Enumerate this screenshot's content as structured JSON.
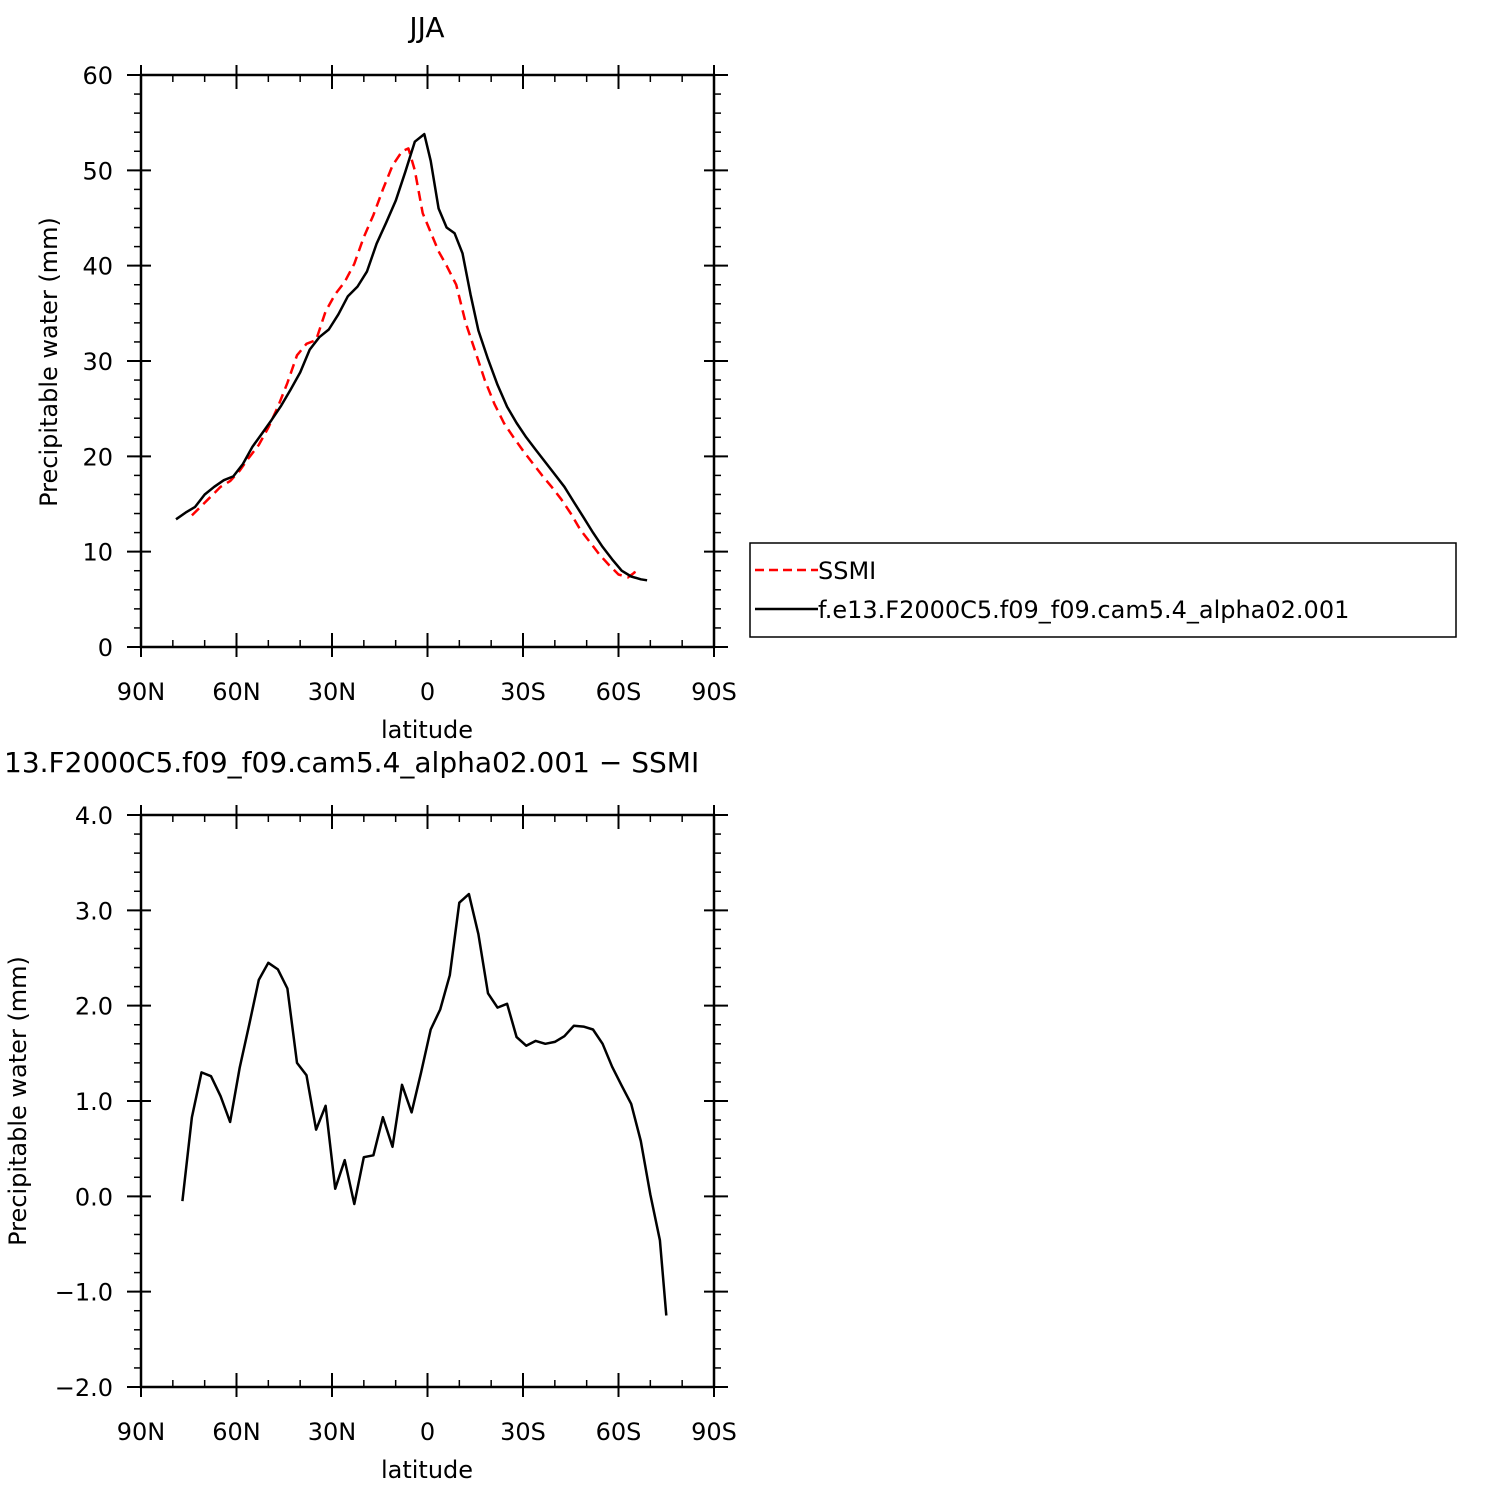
{
  "chart_data": [
    {
      "type": "line",
      "title": "JJA",
      "xlabel": "latitude",
      "ylabel": "Precipitable water (mm)",
      "xlim": [
        90,
        -90
      ],
      "ylim": [
        0,
        60
      ],
      "x_ticks": [
        90,
        60,
        30,
        0,
        -30,
        -60,
        -90
      ],
      "x_tick_labels": [
        "90N",
        "60N",
        "30N",
        "0",
        "30S",
        "60S",
        "90S"
      ],
      "y_ticks": [
        0,
        10,
        20,
        30,
        40,
        50,
        60
      ],
      "y_tick_labels": [
        "0",
        "10",
        "20",
        "30",
        "40",
        "50",
        "60"
      ],
      "legend": "right",
      "series": [
        {
          "name": "SSMI",
          "color": "#ff0000",
          "style": "dashed",
          "points": [
            [
              74,
              13.8
            ],
            [
              71,
              14.8
            ],
            [
              68,
              15.8
            ],
            [
              65,
              16.8
            ],
            [
              62,
              17.4
            ],
            [
              59,
              18.5
            ],
            [
              56,
              19.9
            ],
            [
              53,
              21.2
            ],
            [
              50,
              23
            ],
            [
              47,
              25.2
            ],
            [
              44,
              27.7
            ],
            [
              41,
              30.6
            ],
            [
              38,
              31.8
            ],
            [
              35,
              32.2
            ],
            [
              32,
              35.2
            ],
            [
              29,
              37
            ],
            [
              26,
              38.3
            ],
            [
              23,
              40.2
            ],
            [
              20,
              43
            ],
            [
              17,
              45.3
            ],
            [
              14,
              48
            ],
            [
              11,
              50.5
            ],
            [
              8,
              52
            ],
            [
              6,
              52.3
            ],
            [
              4,
              50
            ],
            [
              1.5,
              45.5
            ],
            [
              -1,
              43.5
            ],
            [
              -3.5,
              41.5
            ],
            [
              -6,
              40
            ],
            [
              -9,
              38
            ],
            [
              -12,
              34
            ],
            [
              -15,
              31
            ],
            [
              -18,
              28
            ],
            [
              -21,
              25.5
            ],
            [
              -24,
              23.5
            ],
            [
              -27,
              22
            ],
            [
              -30,
              20.6
            ],
            [
              -33,
              19.3
            ],
            [
              -36,
              18
            ],
            [
              -39,
              16.8
            ],
            [
              -42,
              15.5
            ],
            [
              -45,
              14
            ],
            [
              -48,
              12.3
            ],
            [
              -51,
              11
            ],
            [
              -54,
              9.7
            ],
            [
              -57,
              8.6
            ],
            [
              -60,
              7.6
            ],
            [
              -63,
              7.3
            ],
            [
              -65,
              7.8
            ],
            [
              -66,
              8.4
            ]
          ]
        },
        {
          "name": "f.e13.F2000C5.f09_f09.cam5.4_alpha02.001",
          "color": "#000000",
          "style": "solid",
          "points": [
            [
              79,
              13.4
            ],
            [
              76,
              14.1
            ],
            [
              73,
              14.7
            ],
            [
              70,
              16
            ],
            [
              67,
              16.8
            ],
            [
              64,
              17.5
            ],
            [
              61,
              17.9
            ],
            [
              58,
              19.2
            ],
            [
              55,
              21
            ],
            [
              52,
              22.4
            ],
            [
              49,
              23.8
            ],
            [
              46,
              25.3
            ],
            [
              43,
              27
            ],
            [
              40,
              28.8
            ],
            [
              37,
              31.2
            ],
            [
              34,
              32.5
            ],
            [
              31,
              33.3
            ],
            [
              28,
              34.9
            ],
            [
              25,
              36.8
            ],
            [
              22,
              37.8
            ],
            [
              19,
              39.4
            ],
            [
              16,
              42.3
            ],
            [
              13,
              44.5
            ],
            [
              10,
              46.8
            ],
            [
              7,
              49.8
            ],
            [
              4,
              53
            ],
            [
              1,
              53.8
            ],
            [
              -1,
              51
            ],
            [
              -3.5,
              46
            ],
            [
              -6,
              44
            ],
            [
              -8.5,
              43.4
            ],
            [
              -11,
              41.3
            ],
            [
              -13.5,
              37
            ],
            [
              -16,
              33.2
            ],
            [
              -19,
              30.2
            ],
            [
              -22,
              27.5
            ],
            [
              -25,
              25.2
            ],
            [
              -28,
              23.5
            ],
            [
              -31,
              22
            ],
            [
              -34,
              20.7
            ],
            [
              -37,
              19.4
            ],
            [
              -40,
              18.1
            ],
            [
              -43,
              16.8
            ],
            [
              -46,
              15.2
            ],
            [
              -49,
              13.6
            ],
            [
              -52,
              12
            ],
            [
              -55,
              10.5
            ],
            [
              -58,
              9.2
            ],
            [
              -61,
              8
            ],
            [
              -64,
              7.4
            ],
            [
              -67,
              7.1
            ],
            [
              -69,
              7
            ]
          ]
        }
      ]
    },
    {
      "type": "line",
      "title": "13.F2000C5.f09_f09.cam5.4_alpha02.001 − SSMI",
      "xlabel": "latitude",
      "ylabel": "Precipitable water (mm)",
      "xlim": [
        90,
        -90
      ],
      "ylim": [
        -2,
        4
      ],
      "x_ticks": [
        90,
        60,
        30,
        0,
        -30,
        -60,
        -90
      ],
      "x_tick_labels": [
        "90N",
        "60N",
        "30N",
        "0",
        "30S",
        "60S",
        "90S"
      ],
      "y_ticks": [
        -2,
        -1,
        0,
        1,
        2,
        3,
        4
      ],
      "y_tick_labels": [
        "−2.0",
        "−1.0",
        "0.0",
        "1.0",
        "2.0",
        "3.0",
        "4.0"
      ],
      "series": [
        {
          "color": "#000000",
          "style": "solid",
          "points": [
            [
              77,
              -0.05
            ],
            [
              74,
              0.83
            ],
            [
              71,
              1.3
            ],
            [
              68,
              1.26
            ],
            [
              65,
              1.05
            ],
            [
              62,
              0.78
            ],
            [
              59,
              1.35
            ],
            [
              56,
              1.8
            ],
            [
              53,
              2.27
            ],
            [
              50,
              2.45
            ],
            [
              47,
              2.38
            ],
            [
              44,
              2.18
            ],
            [
              41,
              1.4
            ],
            [
              38,
              1.27
            ],
            [
              35,
              0.7
            ],
            [
              32,
              0.95
            ],
            [
              29,
              0.08
            ],
            [
              26,
              0.38
            ],
            [
              23,
              -0.08
            ],
            [
              20,
              0.41
            ],
            [
              17,
              0.43
            ],
            [
              14,
              0.83
            ],
            [
              11,
              0.52
            ],
            [
              8,
              1.17
            ],
            [
              5,
              0.88
            ],
            [
              2,
              1.3
            ],
            [
              -1,
              1.75
            ],
            [
              -4,
              1.96
            ],
            [
              -7,
              2.32
            ],
            [
              -10,
              3.08
            ],
            [
              -13,
              3.17
            ],
            [
              -16,
              2.75
            ],
            [
              -19,
              2.13
            ],
            [
              -22,
              1.98
            ],
            [
              -25,
              2.02
            ],
            [
              -28,
              1.67
            ],
            [
              -31,
              1.58
            ],
            [
              -34,
              1.63
            ],
            [
              -37,
              1.6
            ],
            [
              -40,
              1.62
            ],
            [
              -43,
              1.68
            ],
            [
              -46,
              1.79
            ],
            [
              -49,
              1.78
            ],
            [
              -52,
              1.75
            ],
            [
              -55,
              1.6
            ],
            [
              -58,
              1.36
            ],
            [
              -61,
              1.16
            ],
            [
              -64,
              0.97
            ],
            [
              -67,
              0.58
            ],
            [
              -70,
              0.02
            ],
            [
              -73,
              -0.46
            ],
            [
              -75,
              -1.25
            ]
          ]
        }
      ]
    }
  ]
}
